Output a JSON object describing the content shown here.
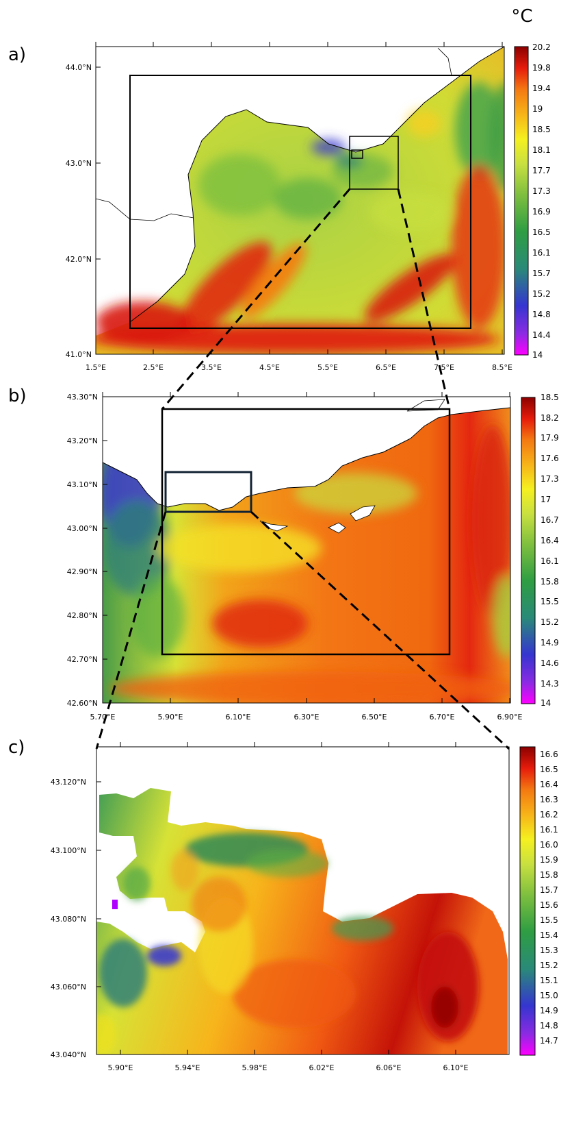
{
  "unit": "°C",
  "panels": [
    {
      "id": "a",
      "label": "a)",
      "x_ticks": [
        "1.5°E",
        "2.5°E",
        "3.5°E",
        "4.5°E",
        "5.5°E",
        "6.5°E",
        "7.5°E",
        "8.5°E"
      ],
      "y_ticks": [
        "44.0°N",
        "43.0°N",
        "42.0°N",
        "41.0°N"
      ],
      "colorbar": [
        "20.2",
        "19.8",
        "19.4",
        "19",
        "18.5",
        "18.1",
        "17.7",
        "17.3",
        "16.9",
        "16.5",
        "16.1",
        "15.7",
        "15.2",
        "14.8",
        "14.4",
        "14"
      ]
    },
    {
      "id": "b",
      "label": "b)",
      "x_ticks": [
        "5.70°E",
        "5.90°E",
        "6.10°E",
        "6.30°E",
        "6.50°E",
        "6.70°E",
        "6.90°E"
      ],
      "y_ticks": [
        "43.30°N",
        "43.20°N",
        "43.10°N",
        "43.00°N",
        "42.90°N",
        "42.80°N",
        "42.70°N",
        "42.60°N"
      ],
      "colorbar": [
        "18.5",
        "18.2",
        "17.9",
        "17.6",
        "17.3",
        "17",
        "16.7",
        "16.4",
        "16.1",
        "15.8",
        "15.5",
        "15.2",
        "14.9",
        "14.6",
        "14.3",
        "14"
      ]
    },
    {
      "id": "c",
      "label": "c)",
      "x_ticks": [
        "5.90°E",
        "5.94°E",
        "5.98°E",
        "6.02°E",
        "6.06°E",
        "6.10°E"
      ],
      "y_ticks": [
        "43.120°N",
        "43.100°N",
        "43.080°N",
        "43.060°N",
        "43.040°N"
      ],
      "colorbar": [
        "16.6",
        "16.5",
        "16.4",
        "16.3",
        "16.2",
        "16.1",
        "16.0",
        "15.9",
        "15.8",
        "15.7",
        "15.6",
        "15.5",
        "15.4",
        "15.3",
        "15.2",
        "15.1",
        "15.0",
        "14.9",
        "14.8",
        "14.7"
      ]
    }
  ],
  "colors": {
    "warm_dark": "#8b0000",
    "warm": "#e0200c",
    "orange": "#f57a12",
    "yellow": "#f5f020",
    "lime": "#b5d53b",
    "green": "#4fa74a",
    "teal": "#2f7f78",
    "blue": "#3a3acd",
    "magenta": "#c000ff"
  }
}
